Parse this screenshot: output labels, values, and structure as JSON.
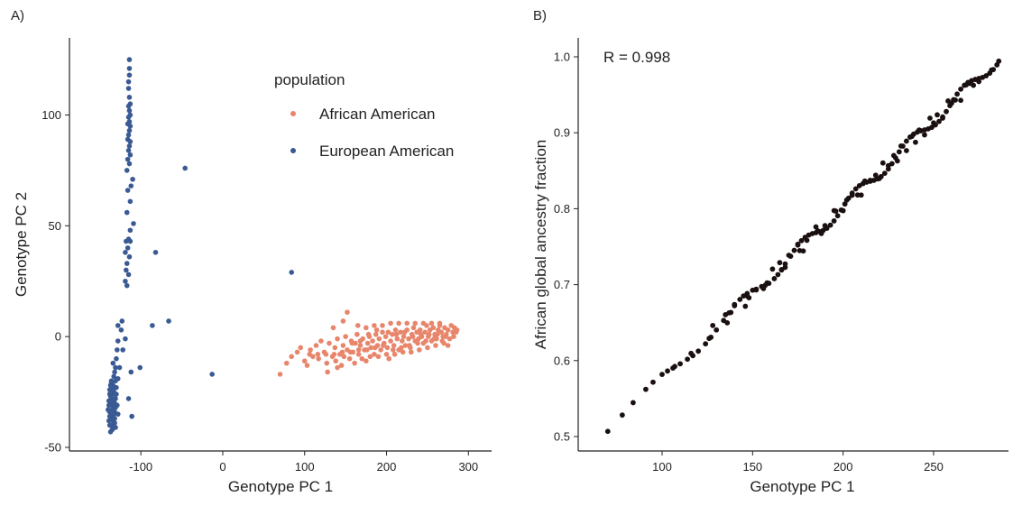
{
  "chart_data": [
    {
      "panel_label": "A)",
      "type": "scatter",
      "xlabel": "Genotype PC 1",
      "ylabel": "Genotype PC 2",
      "xlim": [
        -185,
        325
      ],
      "ylim": [
        -52,
        132
      ],
      "xticks": [
        -100,
        0,
        100,
        200,
        300
      ],
      "yticks": [
        -50,
        0,
        50,
        100
      ],
      "legend": {
        "title": "population",
        "position": "top-center",
        "entries": [
          "African American",
          "European American"
        ]
      },
      "colors": {
        "African American": "#E8866C",
        "European American": "#3A5A94"
      },
      "series": [
        {
          "name": "European American",
          "points": [
            [
              -114,
              125
            ],
            [
              -114,
              121
            ],
            [
              -114,
              118
            ],
            [
              -115,
              115
            ],
            [
              -115,
              112
            ],
            [
              -114,
              108
            ],
            [
              -113,
              105
            ],
            [
              -115,
              104
            ],
            [
              -114,
              102
            ],
            [
              -113,
              100
            ],
            [
              -115,
              99
            ],
            [
              -114,
              97
            ],
            [
              -116,
              96
            ],
            [
              -113,
              95
            ],
            [
              -114,
              93
            ],
            [
              -115,
              91
            ],
            [
              -116,
              89
            ],
            [
              -113,
              88
            ],
            [
              -114,
              86
            ],
            [
              -115,
              84
            ],
            [
              -113,
              82
            ],
            [
              -116,
              80
            ],
            [
              -114,
              78
            ],
            [
              -117,
              75
            ],
            [
              -110,
              71
            ],
            [
              -112,
              68
            ],
            [
              -116,
              66
            ],
            [
              -113,
              61
            ],
            [
              -117,
              56
            ],
            [
              -109,
              51
            ],
            [
              -113,
              48
            ],
            [
              -115,
              44
            ],
            [
              -118,
              43
            ],
            [
              -113,
              43
            ],
            [
              -116,
              40
            ],
            [
              -119,
              38
            ],
            [
              -114,
              36
            ],
            [
              -117,
              33
            ],
            [
              -118,
              30
            ],
            [
              -115,
              28
            ],
            [
              -119,
              25
            ],
            [
              -117,
              23
            ],
            [
              -46,
              76
            ],
            [
              -82,
              38
            ],
            [
              84,
              29
            ],
            [
              -66,
              7
            ],
            [
              -86,
              5
            ],
            [
              -13,
              -17
            ],
            [
              -129,
              -6
            ],
            [
              -130,
              -10
            ],
            [
              -126,
              -14
            ],
            [
              -122,
              -6
            ],
            [
              -119,
              -1
            ],
            [
              -124,
              3
            ],
            [
              -128,
              5
            ],
            [
              -123,
              7
            ],
            [
              -112,
              -16
            ],
            [
              -101,
              -14
            ],
            [
              -115,
              -28
            ],
            [
              -111,
              -36
            ],
            [
              -128,
              -2
            ],
            [
              -131,
              -14
            ],
            [
              -131,
              -20
            ],
            [
              -128,
              -19
            ],
            [
              -136,
              -20
            ],
            [
              -134,
              -22
            ],
            [
              -138,
              -24
            ],
            [
              -133,
              -25
            ],
            [
              -137,
              -27
            ],
            [
              -135,
              -28
            ],
            [
              -139,
              -29
            ],
            [
              -132,
              -30
            ],
            [
              -136,
              -31
            ],
            [
              -134,
              -33
            ],
            [
              -138,
              -34
            ],
            [
              -133,
              -35
            ],
            [
              -137,
              -36
            ],
            [
              -135,
              -37
            ],
            [
              -139,
              -38
            ],
            [
              -132,
              -39
            ],
            [
              -136,
              -40
            ],
            [
              -134,
              -41
            ],
            [
              -138,
              -26
            ],
            [
              -131,
              -32
            ],
            [
              -135,
              -24
            ],
            [
              -137,
              -22
            ],
            [
              -133,
              -29
            ],
            [
              -136,
              -35
            ],
            [
              -134,
              -26
            ],
            [
              -132,
              -37
            ],
            [
              -139,
              -31
            ],
            [
              -135,
              -42
            ],
            [
              -137,
              -43
            ],
            [
              -133,
              -23
            ],
            [
              -136,
              -21
            ],
            [
              -134,
              -38
            ],
            [
              -138,
              -40
            ],
            [
              -131,
              -28
            ],
            [
              -135,
              -33
            ],
            [
              -137,
              -30
            ],
            [
              -133,
              -32
            ],
            [
              -136,
              -28
            ],
            [
              -134,
              -30
            ],
            [
              -138,
              -36
            ],
            [
              -132,
              -34
            ],
            [
              -130,
              -26
            ],
            [
              -129,
              -31
            ],
            [
              -140,
              -33
            ],
            [
              -131,
              -41
            ],
            [
              -133,
              -18
            ],
            [
              -130,
              -23
            ],
            [
              -132,
              -16
            ],
            [
              -134,
              -12
            ],
            [
              -128,
              -35
            ]
          ]
        },
        {
          "name": "African American",
          "points": [
            [
              70,
              -17
            ],
            [
              78,
              -12
            ],
            [
              84,
              -9
            ],
            [
              91,
              -7
            ],
            [
              95,
              -5
            ],
            [
              100,
              -11
            ],
            [
              103,
              -13
            ],
            [
              107,
              -6
            ],
            [
              110,
              -9
            ],
            [
              114,
              -4
            ],
            [
              117,
              -10
            ],
            [
              120,
              -2
            ],
            [
              124,
              -7
            ],
            [
              127,
              -12
            ],
            [
              130,
              -3
            ],
            [
              134,
              -9
            ],
            [
              137,
              -5
            ],
            [
              140,
              -1
            ],
            [
              143,
              -8
            ],
            [
              145,
              -13
            ],
            [
              147,
              -4
            ],
            [
              150,
              0
            ],
            [
              152,
              -6
            ],
            [
              155,
              -10
            ],
            [
              157,
              -2
            ],
            [
              159,
              -7
            ],
            [
              162,
              -3
            ],
            [
              164,
              1
            ],
            [
              166,
              -8
            ],
            [
              168,
              -4
            ],
            [
              171,
              -1
            ],
            [
              173,
              -6
            ],
            [
              175,
              -11
            ],
            [
              177,
              -3
            ],
            [
              179,
              0
            ],
            [
              181,
              -5
            ],
            [
              183,
              -2
            ],
            [
              185,
              -8
            ],
            [
              187,
              1
            ],
            [
              189,
              -4
            ],
            [
              191,
              -1
            ],
            [
              193,
              -6
            ],
            [
              195,
              2
            ],
            [
              197,
              -3
            ],
            [
              199,
              0
            ],
            [
              201,
              -5
            ],
            [
              203,
              -10
            ],
            [
              205,
              -2
            ],
            [
              207,
              1
            ],
            [
              209,
              -4
            ],
            [
              211,
              3
            ],
            [
              213,
              -1
            ],
            [
              215,
              -6
            ],
            [
              217,
              2
            ],
            [
              219,
              -2
            ],
            [
              221,
              0
            ],
            [
              223,
              -4
            ],
            [
              225,
              3
            ],
            [
              227,
              -1
            ],
            [
              229,
              -5
            ],
            [
              231,
              1
            ],
            [
              233,
              4
            ],
            [
              235,
              -2
            ],
            [
              237,
              2
            ],
            [
              239,
              -1
            ],
            [
              241,
              3
            ],
            [
              243,
              0
            ],
            [
              245,
              -3
            ],
            [
              247,
              2
            ],
            [
              249,
              5
            ],
            [
              251,
              0
            ],
            [
              253,
              3
            ],
            [
              255,
              -2
            ],
            [
              257,
              4
            ],
            [
              259,
              1
            ],
            [
              261,
              -1
            ],
            [
              263,
              3
            ],
            [
              265,
              6
            ],
            [
              267,
              2
            ],
            [
              269,
              0
            ],
            [
              271,
              4
            ],
            [
              273,
              1
            ],
            [
              275,
              3
            ],
            [
              277,
              -1
            ],
            [
              279,
              5
            ],
            [
              281,
              2
            ],
            [
              283,
              4
            ],
            [
              285,
              2
            ],
            [
              286,
              3
            ],
            [
              152,
              11
            ],
            [
              147,
              7
            ],
            [
              135,
              4
            ],
            [
              128,
              -16
            ],
            [
              140,
              -14
            ],
            [
              161,
              -12
            ],
            [
              170,
              -10
            ],
            [
              180,
              -9
            ],
            [
              190,
              -9
            ],
            [
              200,
              -8
            ],
            [
              210,
              -8
            ],
            [
              220,
              -7
            ],
            [
              230,
              -7
            ],
            [
              240,
              -6
            ],
            [
              250,
              -5
            ],
            [
              260,
              -4
            ],
            [
              270,
              -3
            ],
            [
              165,
              5
            ],
            [
              175,
              4
            ],
            [
              185,
              5
            ],
            [
              195,
              5
            ],
            [
              205,
              6
            ],
            [
              215,
              6
            ],
            [
              225,
              6
            ],
            [
              235,
              6
            ],
            [
              245,
              6
            ],
            [
              255,
              6
            ],
            [
              265,
              5
            ],
            [
              275,
              -4
            ],
            [
              208,
              -6
            ],
            [
              218,
              -5
            ],
            [
              228,
              -4
            ],
            [
              238,
              -3
            ],
            [
              248,
              -2
            ],
            [
              258,
              -1
            ],
            [
              268,
              -2
            ],
            [
              196,
              -4
            ],
            [
              186,
              -5
            ],
            [
              176,
              -6
            ],
            [
              166,
              -6
            ],
            [
              156,
              -7
            ],
            [
              146,
              -7
            ],
            [
              136,
              -8
            ],
            [
              126,
              -8
            ],
            [
              116,
              -8
            ],
            [
              106,
              -8
            ],
            [
              202,
              2
            ],
            [
              212,
              1
            ],
            [
              222,
              2
            ],
            [
              232,
              0
            ],
            [
              242,
              1
            ],
            [
              252,
              1
            ],
            [
              262,
              1
            ],
            [
              272,
              0
            ],
            [
              282,
              0
            ],
            [
              188,
              3
            ],
            [
              178,
              1
            ],
            [
              168,
              -2
            ],
            [
              158,
              -3
            ],
            [
              148,
              -9
            ],
            [
              138,
              -11
            ]
          ]
        }
      ]
    },
    {
      "panel_label": "B)",
      "type": "scatter",
      "xlabel": "Genotype PC 1",
      "ylabel": "African global ancestry fraction",
      "xlim": [
        57,
        295
      ],
      "ylim": [
        0.49,
        1.02
      ],
      "xticks": [
        100,
        150,
        200,
        250
      ],
      "yticks": [
        0.5,
        0.6,
        0.7,
        0.8,
        0.9,
        1.0
      ],
      "ytick_labels": [
        "0.5",
        "0.6",
        "0.7",
        "0.8",
        "0.9",
        "1.0"
      ],
      "annotation": "R = 0.998",
      "point_color": "#1a1010"
    }
  ]
}
